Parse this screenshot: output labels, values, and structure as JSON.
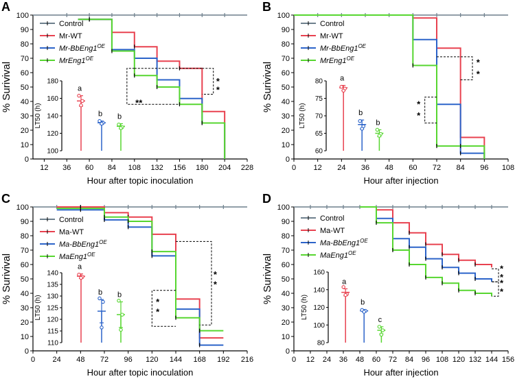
{
  "colors": {
    "control": "#6d7f8c",
    "wt": "#e8414f",
    "bb": "#2b63c9",
    "eng": "#56d62f"
  },
  "chart_data": [
    {
      "type": "line",
      "step": true,
      "panel": "A",
      "xlabel": "Hour after topic inoculation",
      "ylabel": "% Surivival",
      "xlim": [
        0,
        228
      ],
      "ylim": [
        0,
        100
      ],
      "xticks": [
        "12",
        "36",
        "60",
        "84",
        "108",
        "132",
        "156",
        "180",
        "204",
        "228"
      ],
      "yticks": [
        "0",
        "10",
        "20",
        "30",
        "40",
        "50",
        "60",
        "70",
        "80",
        "90",
        "100"
      ],
      "series": [
        {
          "name": "Control",
          "italic": false,
          "x": [
            0,
            228
          ],
          "y": [
            100,
            100
          ]
        },
        {
          "name": "Mr-WT",
          "italic": false,
          "x": [
            48,
            60,
            84,
            108,
            132,
            156,
            180,
            204
          ],
          "y": [
            97,
            97,
            88,
            78,
            68,
            63,
            33,
            0
          ]
        },
        {
          "name": "Mr-BbEng1",
          "sup": "OE",
          "italic": true,
          "x": [
            48,
            60,
            84,
            108,
            132,
            156,
            180,
            204
          ],
          "y": [
            97,
            97,
            76,
            70,
            55,
            42,
            25,
            0
          ]
        },
        {
          "name": "MrEng1",
          "sup": "OE",
          "italic": true,
          "x": [
            48,
            60,
            84,
            108,
            132,
            156,
            180,
            204
          ],
          "y": [
            97,
            97,
            75,
            58,
            50,
            38,
            25,
            0
          ]
        }
      ],
      "inset": {
        "ylabel": "LT50 (h)",
        "ylim": [
          100,
          180
        ],
        "yticks": [
          "100",
          "120",
          "140",
          "160",
          "180"
        ],
        "groups": [
          {
            "mean": 157,
            "sd": 6,
            "points": [
              163,
              157,
              152
            ],
            "letter": "a"
          },
          {
            "mean": 132,
            "sd": 2,
            "points": [
              134,
              132,
              131
            ],
            "letter": "b"
          },
          {
            "mean": 128,
            "sd": 3,
            "points": [
              130,
              127,
              126
            ],
            "letter": "b"
          }
        ]
      },
      "significance": [
        "*\n*",
        "**"
      ]
    },
    {
      "type": "line",
      "step": true,
      "panel": "B",
      "xlabel": "Hour after injection",
      "ylabel": "% Surivival",
      "xlim": [
        0,
        108
      ],
      "ylim": [
        0,
        100
      ],
      "xticks": [
        "0",
        "12",
        "24",
        "36",
        "48",
        "60",
        "72",
        "84",
        "96",
        "108"
      ],
      "yticks": [
        "0",
        "10",
        "20",
        "30",
        "40",
        "50",
        "60",
        "70",
        "80",
        "90",
        "100"
      ],
      "series": [
        {
          "name": "Control",
          "italic": false,
          "x": [
            0,
            108
          ],
          "y": [
            100,
            100
          ]
        },
        {
          "name": "Mr-WT",
          "italic": false,
          "x": [
            0,
            60,
            72,
            84,
            96
          ],
          "y": [
            100,
            98,
            77,
            15,
            0
          ]
        },
        {
          "name": "Mr-BbEng1",
          "sup": "OE",
          "italic": true,
          "x": [
            0,
            60,
            72,
            84,
            96
          ],
          "y": [
            100,
            83,
            38,
            4,
            0
          ]
        },
        {
          "name": "MrEng1",
          "sup": "OE",
          "italic": true,
          "x": [
            0,
            60,
            72,
            84,
            96
          ],
          "y": [
            100,
            65,
            9,
            9,
            0
          ]
        }
      ],
      "inset": {
        "ylabel": "LT50 (h)",
        "ylim": [
          60,
          80
        ],
        "yticks": [
          "60",
          "65",
          "70",
          "75",
          "80"
        ],
        "groups": [
          {
            "mean": 78,
            "sd": 0.7,
            "points": [
              78.3,
              77.8,
              77.2
            ],
            "letter": "a"
          },
          {
            "mean": 67.5,
            "sd": 1.3,
            "points": [
              68.5,
              67,
              66.3
            ],
            "letter": "b"
          },
          {
            "mean": 65,
            "sd": 1,
            "points": [
              66,
              64.8,
              64.3
            ],
            "letter": "b"
          }
        ]
      },
      "significance": [
        "*\n*",
        "*\n*"
      ]
    },
    {
      "type": "line",
      "step": true,
      "panel": "C",
      "xlabel": "Hour after topic inoculation",
      "ylabel": "% Surivival",
      "xlim": [
        0,
        216
      ],
      "ylim": [
        0,
        100
      ],
      "xticks": [
        "0",
        "24",
        "48",
        "72",
        "96",
        "120",
        "144",
        "168",
        "192",
        "216"
      ],
      "yticks": [
        "0",
        "10",
        "20",
        "30",
        "40",
        "50",
        "60",
        "70",
        "80",
        "90",
        "100"
      ],
      "series": [
        {
          "name": "Control",
          "italic": false,
          "x": [
            0,
            216
          ],
          "y": [
            100,
            100
          ]
        },
        {
          "name": "Ma-WT",
          "italic": false,
          "x": [
            24,
            48,
            72,
            96,
            120,
            144,
            168,
            192
          ],
          "y": [
            100,
            100,
            96,
            93,
            81,
            36,
            9,
            9
          ]
        },
        {
          "name": "Ma-BbEng1",
          "sup": "OE",
          "italic": true,
          "x": [
            24,
            48,
            72,
            96,
            120,
            144,
            168,
            192
          ],
          "y": [
            98,
            98,
            91,
            86,
            66,
            29,
            4,
            4
          ]
        },
        {
          "name": "MaEng1",
          "sup": "OE",
          "italic": true,
          "x": [
            24,
            48,
            72,
            96,
            120,
            144,
            168,
            192
          ],
          "y": [
            99,
            99,
            93,
            90,
            69,
            23,
            14,
            14
          ]
        }
      ],
      "inset": {
        "ylabel": "LT50 (h)",
        "ylim": [
          110,
          140
        ],
        "yticks": [
          "110",
          "115",
          "120",
          "125",
          "130",
          "135",
          "140"
        ],
        "groups": [
          {
            "mean": 138.5,
            "sd": 1,
            "points": [
              139.2,
              138.2,
              137.8
            ],
            "letter": "a"
          },
          {
            "mean": 123.5,
            "sd": 5,
            "points": [
              129,
              127.5,
              116.5
            ],
            "letter": "b"
          },
          {
            "mean": 122,
            "sd": 5.5,
            "points": [
              128,
              122,
              115.5
            ],
            "letter": "b"
          }
        ]
      },
      "significance": [
        "*\n*",
        "*\n*"
      ]
    },
    {
      "type": "line",
      "step": true,
      "panel": "D",
      "xlabel": "Hour after injection",
      "ylabel": "% Surivival",
      "xlim": [
        0,
        156
      ],
      "ylim": [
        0,
        100
      ],
      "xticks": [
        "0",
        "12",
        "24",
        "36",
        "48",
        "60",
        "72",
        "84",
        "96",
        "108",
        "120",
        "132",
        "144",
        "156"
      ],
      "yticks": [
        "0",
        "10",
        "20",
        "30",
        "40",
        "50",
        "60",
        "70",
        "80",
        "90",
        "100"
      ],
      "series": [
        {
          "name": "Control",
          "italic": false,
          "x": [
            0,
            156
          ],
          "y": [
            100,
            100
          ]
        },
        {
          "name": "Ma-WT",
          "italic": false,
          "x": [
            48,
            60,
            72,
            84,
            96,
            108,
            120,
            132,
            144
          ],
          "y": [
            100,
            98,
            89,
            82,
            74,
            67,
            63,
            60,
            58
          ]
        },
        {
          "name": "Ma-BbEng1",
          "sup": "OE",
          "italic": true,
          "x": [
            48,
            60,
            72,
            84,
            96,
            108,
            120,
            132,
            144
          ],
          "y": [
            100,
            92,
            78,
            72,
            64,
            58,
            54,
            50,
            48
          ]
        },
        {
          "name": "MaEng1",
          "sup": "OE",
          "italic": true,
          "x": [
            48,
            60,
            72,
            84,
            96,
            108,
            120,
            132,
            144
          ],
          "y": [
            100,
            89,
            70,
            60,
            51,
            47,
            42,
            40,
            38
          ]
        }
      ],
      "inset": {
        "ylabel": "LT50 (h)",
        "ylim": [
          80,
          160
        ],
        "yticks": [
          "80",
          "100",
          "120",
          "140",
          "160"
        ],
        "groups": [
          {
            "mean": 137,
            "sd": 4,
            "points": [
              143,
              135,
              134
            ],
            "letter": "a"
          },
          {
            "mean": 116,
            "sd": 1.5,
            "points": [
              117,
              116,
              115
            ],
            "letter": "b"
          },
          {
            "mean": 94,
            "sd": 4,
            "points": [
              98,
              94,
              89
            ],
            "letter": "c"
          }
        ]
      },
      "significance": [
        "*\n*",
        "*\n*"
      ]
    }
  ]
}
